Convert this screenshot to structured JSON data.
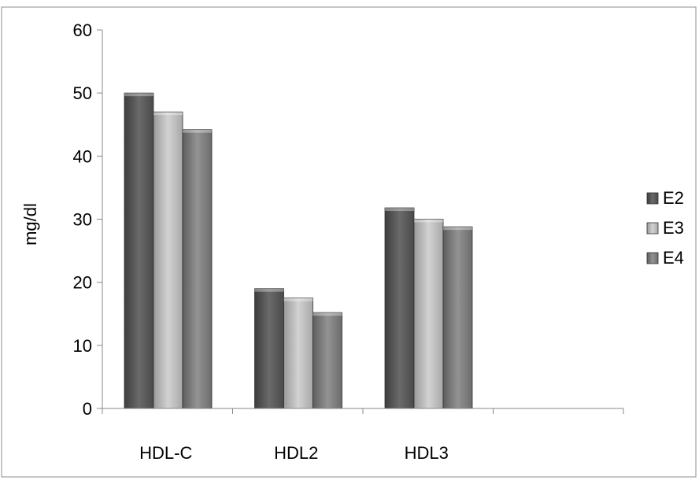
{
  "chart_data": {
    "type": "bar",
    "title": "",
    "xlabel": "",
    "ylabel": "mg/dl",
    "ylim": [
      0,
      60
    ],
    "yticks": [
      0,
      10,
      20,
      30,
      40,
      50,
      60
    ],
    "categories": [
      "HDL-C",
      "HDL2",
      "HDL3",
      ""
    ],
    "series": [
      {
        "name": "E2",
        "values": [
          50,
          19,
          31.8,
          null
        ],
        "color": "#5a5a5a"
      },
      {
        "name": "E3",
        "values": [
          47,
          17.5,
          30,
          null
        ],
        "color": "#b8b8b8"
      },
      {
        "name": "E4",
        "values": [
          44.2,
          15.2,
          28.8,
          null
        ],
        "color": "#7f7f7f"
      }
    ],
    "grid": false,
    "legend_position": "right"
  }
}
